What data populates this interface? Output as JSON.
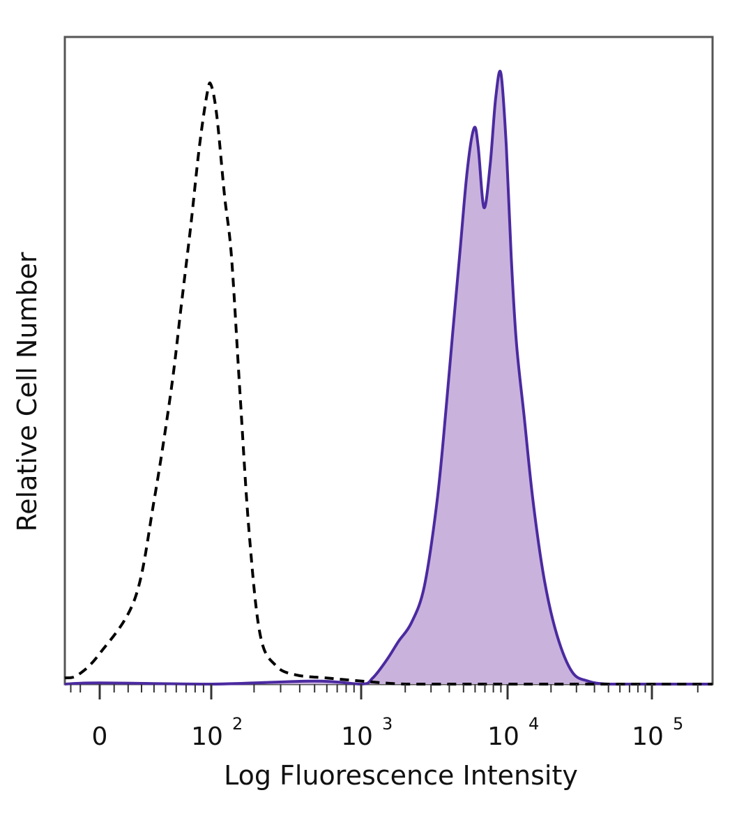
{
  "chart_data": {
    "type": "area",
    "xlabel": "Log Fluorescence Intensity",
    "ylabel": "Relative Cell Number",
    "x_scale": "biexponential",
    "xlim": [
      -300,
      250000
    ],
    "ylim": [
      0,
      100
    ],
    "grid": false,
    "legend": "none",
    "x_ticks": [
      {
        "value": 0,
        "base": "0",
        "exp": ""
      },
      {
        "value": 100,
        "base": "10",
        "exp": "2"
      },
      {
        "value": 1000,
        "base": "10",
        "exp": "3"
      },
      {
        "value": 10000,
        "base": "10",
        "exp": "4"
      },
      {
        "value": 100000,
        "base": "10",
        "exp": "5"
      }
    ],
    "series": [
      {
        "style": "dashed-outline",
        "color": "#000000",
        "x": [
          -300,
          -120,
          0,
          25,
          40,
          55,
          65,
          75,
          85,
          95,
          100,
          110,
          125,
          140,
          160,
          185,
          220,
          280,
          380,
          600,
          1000,
          2000,
          5000,
          10000,
          20000,
          50000,
          100000,
          250000
        ],
        "y": [
          1,
          1.5,
          5,
          14,
          30,
          48,
          62,
          75,
          88,
          97,
          98,
          93,
          80,
          70,
          48,
          25,
          8,
          3,
          1.5,
          1,
          0.5,
          0,
          0,
          0,
          0,
          0,
          0,
          0
        ]
      },
      {
        "style": "filled",
        "color": "#4b2aa0",
        "fill": "#c9b3dc",
        "x": [
          -300,
          0,
          100,
          500,
          1000,
          1200,
          1500,
          1800,
          2200,
          2700,
          3300,
          3800,
          4200,
          4700,
          5300,
          5900,
          6300,
          6900,
          7600,
          8300,
          9000,
          9800,
          10600,
          11500,
          13000,
          15000,
          18000,
          22000,
          28000,
          36000,
          50000,
          100000,
          250000
        ],
        "y": [
          0,
          0.2,
          0,
          0.5,
          0,
          1,
          4,
          7,
          10,
          16,
          30,
          45,
          57,
          70,
          84,
          91,
          88,
          78,
          85,
          96,
          100,
          88,
          70,
          56,
          44,
          30,
          17,
          8,
          2,
          0.5,
          0,
          0,
          0
        ]
      }
    ]
  }
}
